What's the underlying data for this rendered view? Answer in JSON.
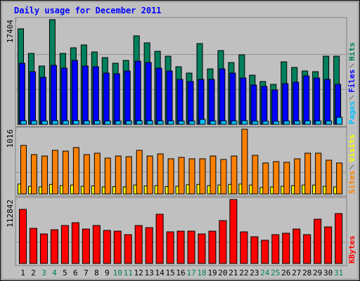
{
  "chart_data": [
    {
      "type": "bar",
      "title": "Daily usage for December 2011",
      "ylim": [
        0,
        17404
      ],
      "yticks": [
        17404
      ],
      "series": [
        {
          "name": "Pages",
          "color": "#00C0FF",
          "values": [
            600,
            580,
            560,
            600,
            590,
            620,
            580,
            600,
            560,
            560,
            570,
            600,
            590,
            580,
            570,
            560,
            550,
            820,
            560,
            590,
            570,
            600,
            540,
            520,
            500,
            560,
            560,
            580,
            570,
            560,
            1170
          ]
        },
        {
          "name": "Files",
          "color": "#0000FF",
          "values": [
            10162,
            8760,
            7826,
            9811,
            9344,
            10629,
            9694,
            9578,
            8527,
            8410,
            8877,
            10512,
            10279,
            9344,
            8877,
            7475,
            7125,
            7475,
            7475,
            9227,
            8527,
            7709,
            6541,
            6307,
            5723,
            6774,
            7008,
            8059,
            7709,
            7475,
            6658
          ]
        },
        {
          "name": "Hits",
          "color": "#00805C",
          "values": [
            15886,
            11797,
            9694,
            17404,
            11797,
            12732,
            13199,
            12031,
            11096,
            10162,
            10629,
            14717,
            13549,
            12148,
            11330,
            9578,
            8527,
            13432,
            9227,
            12264,
            10279,
            11564,
            8176,
            7125,
            6658,
            10396,
            9461,
            8877,
            8760,
            11330,
            11330
          ]
        }
      ]
    },
    {
      "type": "bar",
      "ylim": [
        0,
        1016
      ],
      "yticks": [
        1016
      ],
      "series": [
        {
          "name": "Sites",
          "color": "#FF8000",
          "values": [
            762,
            618,
            596,
            685,
            673,
            729,
            618,
            640,
            563,
            596,
            585,
            685,
            596,
            629,
            552,
            574,
            552,
            552,
            596,
            541,
            596,
            1016,
            607,
            486,
            508,
            497,
            552,
            640,
            640,
            530,
            486
          ]
        },
        {
          "name": "Visits",
          "color": "#FFFF00",
          "values": [
            155,
            120,
            110,
            150,
            130,
            140,
            120,
            125,
            110,
            115,
            110,
            140,
            125,
            130,
            115,
            120,
            145,
            150,
            130,
            140,
            150,
            155,
            140,
            100,
            110,
            120,
            130,
            140,
            140,
            120,
            110
          ]
        }
      ]
    },
    {
      "type": "bar",
      "ylim": [
        0,
        112842
      ],
      "yticks": [
        112842
      ],
      "series": [
        {
          "name": "KBytes",
          "color": "#FF0000",
          "values": [
            95480,
            62000,
            52080,
            59520,
            66960,
            71920,
            60760,
            66960,
            58280,
            57040,
            50840,
            66960,
            63240,
            86800,
            55800,
            57040,
            57040,
            52080,
            57040,
            75640,
            112842,
            55800,
            47120,
            40920,
            50840,
            53320,
            60760,
            50840,
            78120,
            64480,
            88040
          ]
        }
      ],
      "categories": [
        "1",
        "2",
        "3",
        "4",
        "5",
        "6",
        "7",
        "8",
        "9",
        "10",
        "11",
        "12",
        "13",
        "14",
        "15",
        "16",
        "17",
        "18",
        "19",
        "20",
        "21",
        "22",
        "23",
        "24",
        "25",
        "26",
        "27",
        "28",
        "29",
        "30",
        "31"
      ],
      "category_colors": [
        "#000000",
        "#000000",
        "#00805C",
        "#00805C",
        "#000000",
        "#000000",
        "#000000",
        "#000000",
        "#000000",
        "#00805C",
        "#00805C",
        "#000000",
        "#000000",
        "#000000",
        "#000000",
        "#000000",
        "#00805C",
        "#00805C",
        "#000000",
        "#000000",
        "#000000",
        "#000000",
        "#000000",
        "#00805C",
        "#00805C",
        "#000000",
        "#000000",
        "#000000",
        "#000000",
        "#000000",
        "#00805C"
      ]
    }
  ]
}
